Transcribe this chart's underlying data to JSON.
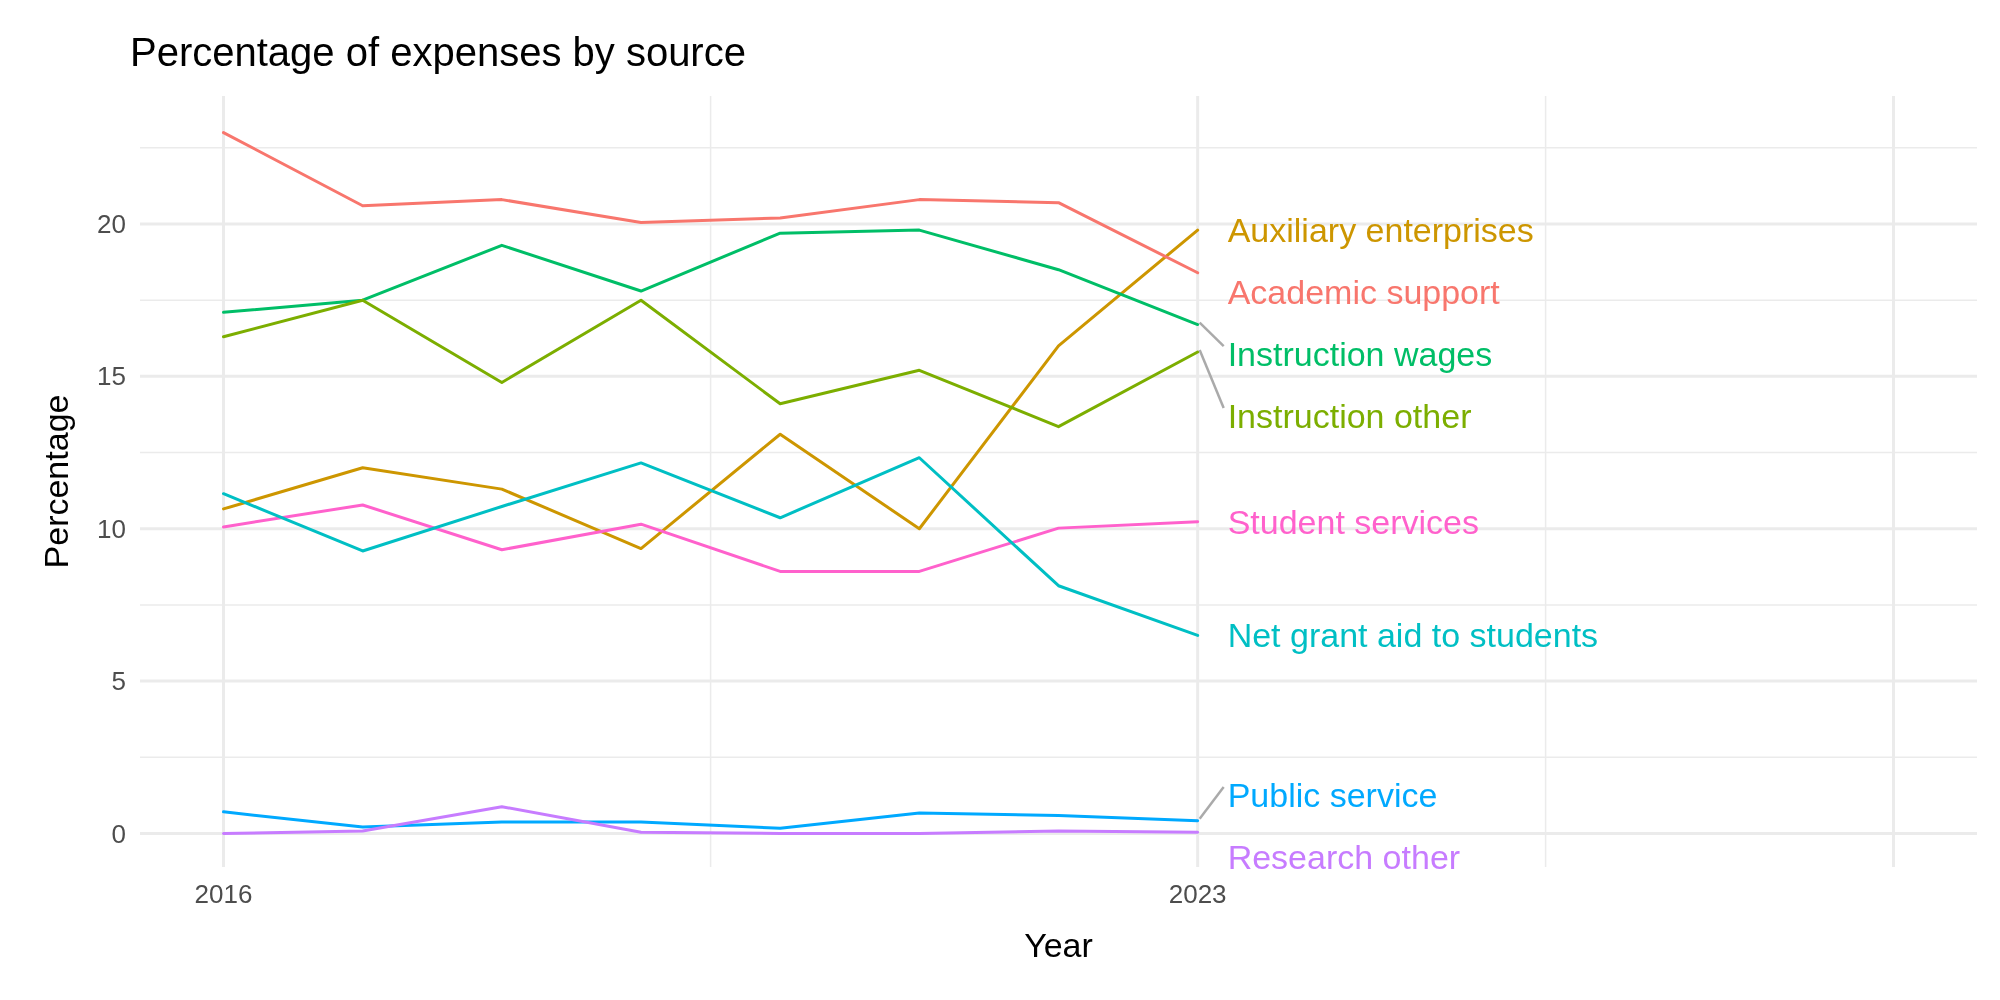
{
  "chart_data": {
    "type": "line",
    "title": "Percentage of expenses by source",
    "xlabel": "Year",
    "ylabel": "Percentage",
    "x": [
      2016,
      2017,
      2018,
      2019,
      2020,
      2021,
      2022,
      2023
    ],
    "xlim": [
      2015.4,
      2028.6
    ],
    "xticks": [
      2016,
      2023,
      {
        "value": 2028,
        "label": null
      }
    ],
    "ylim": [
      -1.1,
      24.2
    ],
    "yticks": [
      0,
      5,
      10,
      15,
      20
    ],
    "grid": true,
    "series": [
      {
        "name": "Auxiliary enterprises",
        "color": "#cd9600",
        "values": [
          10.65,
          12.0,
          11.3,
          9.35,
          13.1,
          10.0,
          16.0,
          19.8
        ]
      },
      {
        "name": "Academic support",
        "color": "#f8766d",
        "values": [
          23.0,
          20.6,
          20.8,
          20.05,
          20.2,
          20.8,
          20.7,
          18.4
        ]
      },
      {
        "name": "Instruction wages",
        "color": "#00be67",
        "values": [
          17.1,
          17.5,
          19.3,
          17.8,
          19.7,
          19.8,
          18.5,
          16.7
        ]
      },
      {
        "name": "Instruction other",
        "color": "#7cae00",
        "values": [
          16.3,
          17.5,
          14.8,
          17.5,
          14.1,
          15.2,
          13.35,
          15.8
        ]
      },
      {
        "name": "Student services",
        "color": "#ff61cc",
        "values": [
          10.06,
          10.78,
          9.31,
          10.15,
          8.6,
          8.6,
          10.02,
          10.23
        ]
      },
      {
        "name": "Net grant aid to students",
        "color": "#00bfc4",
        "values": [
          11.15,
          9.27,
          10.73,
          12.16,
          10.36,
          12.33,
          8.13,
          6.5
        ]
      },
      {
        "name": "Public service",
        "color": "#00a9ff",
        "values": [
          0.71,
          0.21,
          0.38,
          0.38,
          0.17,
          0.67,
          0.59,
          0.42
        ]
      },
      {
        "name": "Research other",
        "color": "#c77cff",
        "values": [
          0,
          0.08,
          0.88,
          0.04,
          0,
          0,
          0.08,
          0.04
        ]
      }
    ]
  }
}
